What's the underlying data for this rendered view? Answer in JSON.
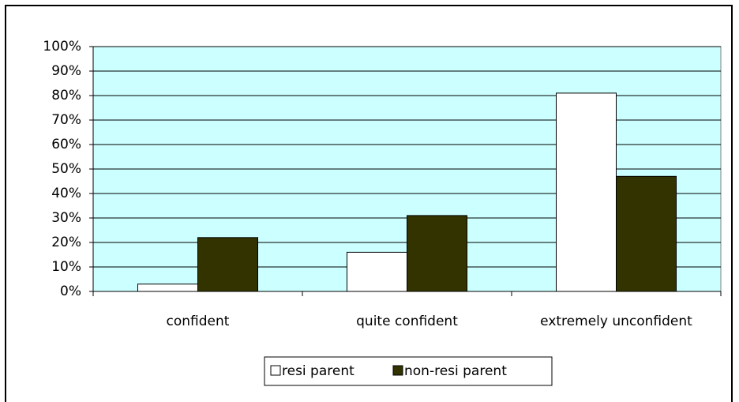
{
  "chart_data": {
    "type": "bar",
    "categories": [
      "confident",
      "quite confident",
      "extremely unconfident"
    ],
    "series": [
      {
        "name": "resi parent",
        "color": "#ffffff",
        "values": [
          3,
          16,
          81
        ]
      },
      {
        "name": "non-resi parent",
        "color": "#333300",
        "values": [
          22,
          31,
          47
        ]
      }
    ],
    "ylim": [
      0,
      100
    ],
    "yticks": [
      {
        "value": 0,
        "label": "0%"
      },
      {
        "value": 10,
        "label": "10%"
      },
      {
        "value": 20,
        "label": "20%"
      },
      {
        "value": 30,
        "label": "30%"
      },
      {
        "value": 40,
        "label": "40%"
      },
      {
        "value": 50,
        "label": "50%"
      },
      {
        "value": 60,
        "label": "60%"
      },
      {
        "value": 70,
        "label": "70%"
      },
      {
        "value": 80,
        "label": "80%"
      },
      {
        "value": 90,
        "label": "90%"
      },
      {
        "value": 100,
        "label": "100%"
      }
    ],
    "grid": true,
    "plot_background": "#ccffff",
    "legend": "bottom"
  }
}
